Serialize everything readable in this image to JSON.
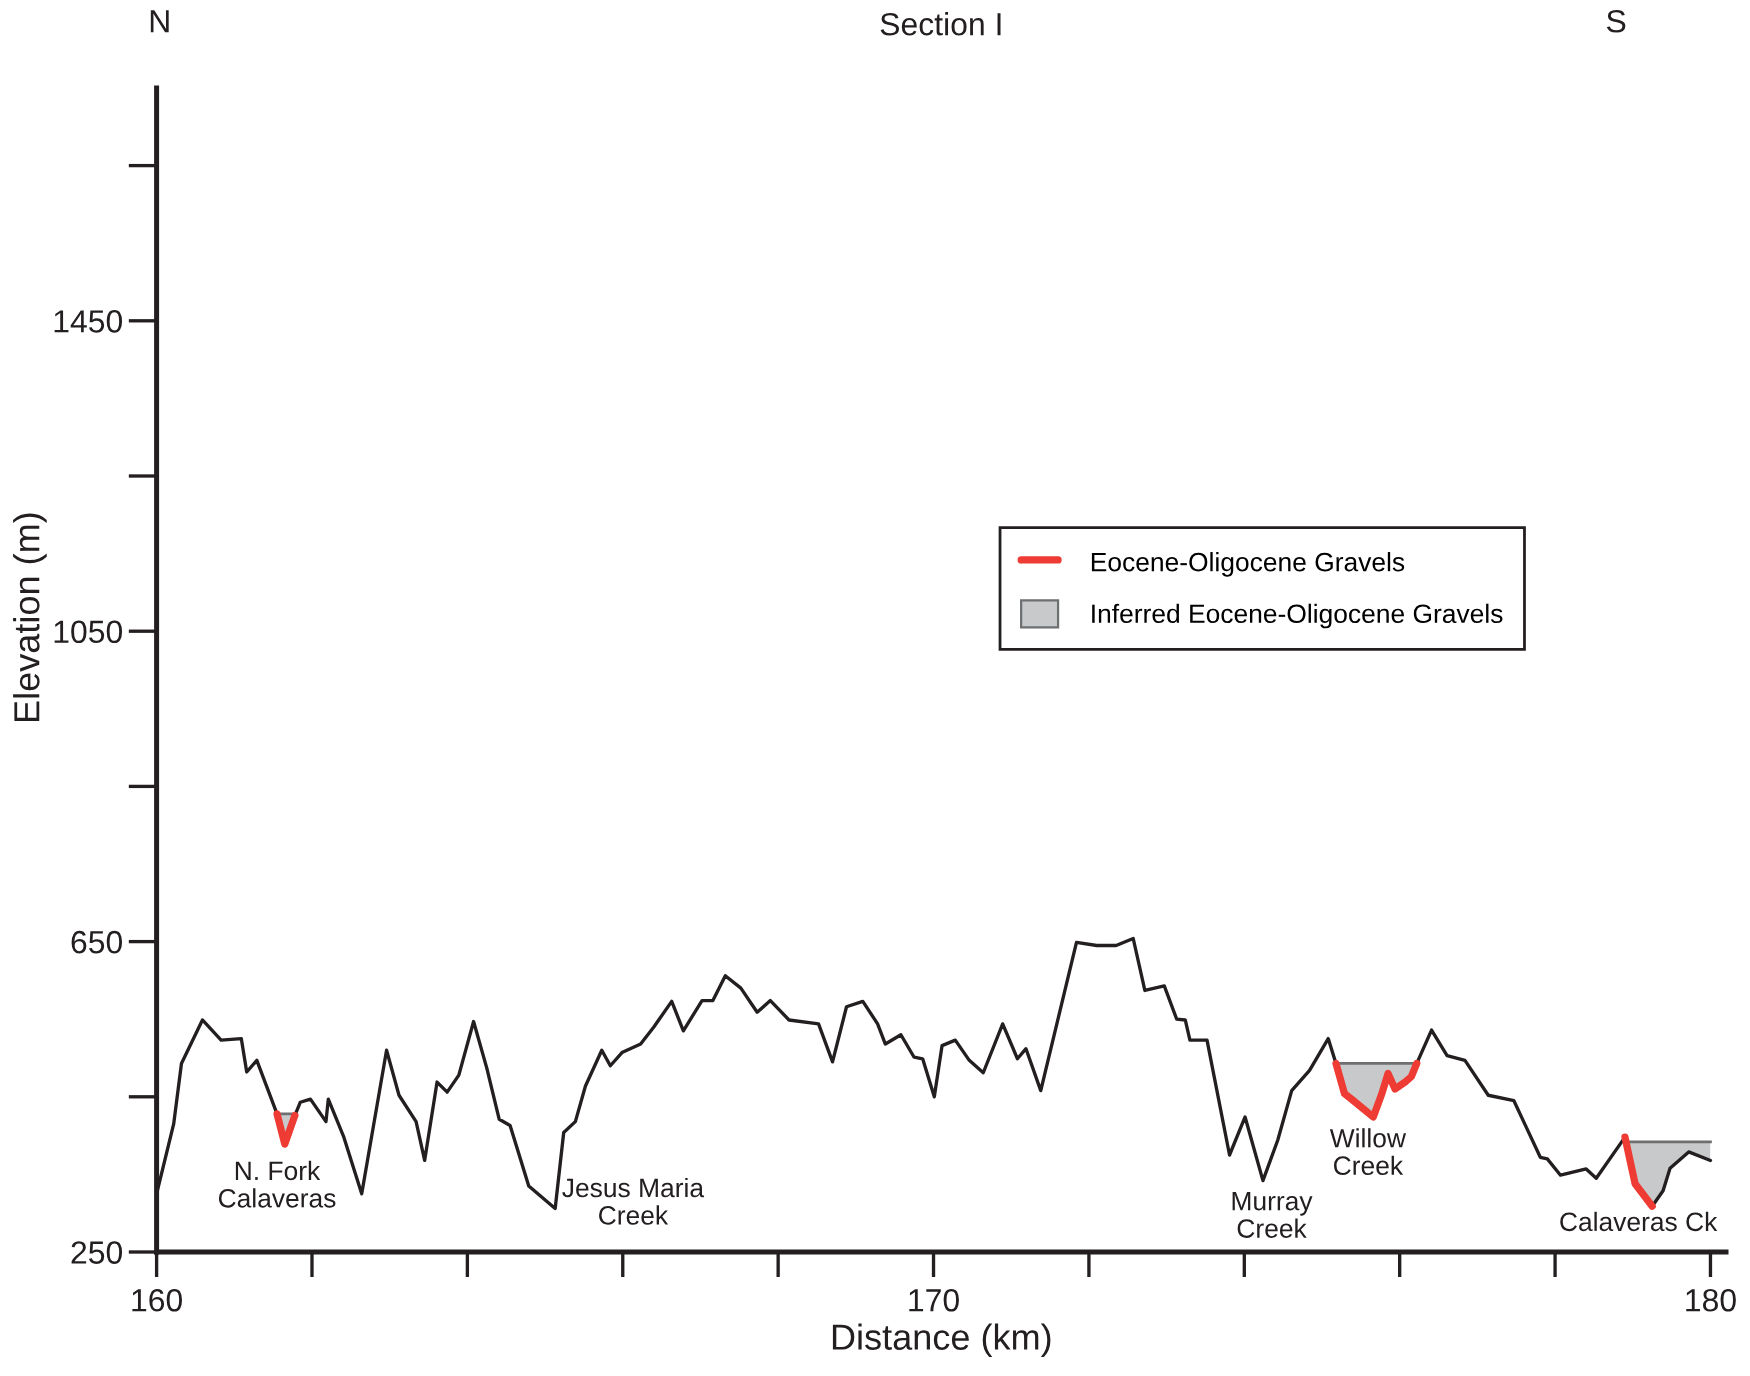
{
  "chart_data": {
    "type": "line",
    "title": "Section I",
    "xlabel": "Distance (km)",
    "ylabel": "Elevation (m)",
    "annotations": [
      "N",
      "S",
      "N. Fork\nCalaveras",
      "Jesus Maria\nCreek",
      "Murray\nCreek",
      "Willow\nCreek",
      "Calaveras Ck"
    ],
    "xlim": [
      160,
      180.2
    ],
    "ylim": [
      250,
      1750
    ],
    "xticks": [
      160,
      {
        "value": 162,
        "label": null
      },
      {
        "value": 164,
        "label": null
      },
      {
        "value": 166,
        "label": null
      },
      {
        "value": 168,
        "label": null
      },
      170,
      {
        "value": 172,
        "label": null
      },
      {
        "value": 174,
        "label": null
      },
      {
        "value": 176,
        "label": null
      },
      {
        "value": 178,
        "label": null
      },
      180
    ],
    "yticks": [
      250,
      {
        "value": 450,
        "label": null
      },
      650,
      {
        "value": 850,
        "label": null
      },
      1050,
      {
        "value": 1250,
        "label": null
      },
      1450,
      {
        "value": 1650,
        "label": null
      }
    ],
    "legend": "right",
    "series": [
      {
        "color": "#231f20",
        "x": [
          160.0,
          160.22,
          160.32,
          160.59,
          160.83,
          161.09,
          161.16,
          161.29,
          161.55,
          161.65,
          161.78,
          161.85,
          161.98,
          162.18,
          162.21,
          162.41,
          162.64,
          162.96,
          163.12,
          163.34,
          163.45,
          163.61,
          163.74,
          163.89,
          164.08,
          164.25,
          164.41,
          164.55,
          164.79,
          165.13,
          165.24,
          165.39,
          165.52,
          165.73,
          165.84,
          165.99,
          166.23,
          166.4,
          166.63,
          166.78,
          167.02,
          167.16,
          167.32,
          167.52,
          167.73,
          167.9,
          168.14,
          168.52,
          168.7,
          168.88,
          169.09,
          169.28,
          169.38,
          169.58,
          169.75,
          169.86,
          170.01,
          170.11,
          170.28,
          170.46,
          170.64,
          170.89,
          171.08,
          171.19,
          171.38,
          171.84,
          172.1,
          172.35,
          172.57,
          172.72,
          172.97,
          173.13,
          173.24,
          173.3,
          173.52,
          173.81,
          174.01,
          174.24,
          174.43,
          174.61,
          174.84,
          175.08,
          175.18,
          175.29,
          175.38,
          175.66,
          175.77,
          175.85,
          175.94,
          176.07,
          176.15,
          176.22,
          176.41,
          176.61,
          176.84,
          177.14,
          177.47,
          177.81,
          177.9,
          178.07,
          178.4,
          178.53,
          178.9,
          179.03,
          179.25,
          179.39,
          179.48,
          179.72,
          180.0
        ],
        "values": [
          325,
          415,
          493,
          549,
          523,
          525,
          482,
          497,
          428,
          null,
          426,
          443,
          447,
          418,
          447,
          398,
          325,
          510,
          452,
          418,
          368,
          469,
          456,
          478,
          547,
          487,
          421,
          413,
          335,
          306,
          404,
          418,
          464,
          510,
          490,
          507,
          518,
          540,
          573,
          535,
          574,
          574,
          606,
          590,
          559,
          574,
          549,
          544,
          495,
          566,
          573,
          544,
          518,
          530,
          501,
          499,
          450,
          516,
          523,
          497,
          481,
          544,
          499,
          512,
          458,
          649,
          645,
          645,
          654,
          587,
          593,
          550,
          549,
          523,
          523,
          375,
          424,
          342,
          394,
          458,
          484,
          525,
          493,
          null,
          null,
          null,
          null,
          null,
          null,
          null,
          null,
          493,
          536,
          503,
          497,
          452,
          445,
          372,
          370,
          349,
          357,
          345,
          398,
          null,
          309,
          329,
          358,
          379,
          368
        ]
      },
      {
        "type": "line",
        "name": "Eocene-Oligocene Gravels",
        "color": "#ee3b33",
        "x": [
          161.55,
          161.65,
          161.78,
          168.5,
          175.18,
          175.29,
          175.38,
          175.66,
          175.77,
          175.85,
          175.94,
          176.07,
          176.15,
          176.22,
          177.5,
          178.9,
          179.03,
          179.25
        ],
        "values": [
          428,
          389,
          426,
          null,
          493,
          454,
          447,
          424,
          454,
          480,
          460,
          469,
          476,
          493,
          null,
          398,
          338,
          309
        ]
      },
      {
        "type": "area",
        "name": "Inferred Eocene-Oligocene Gravels",
        "color": "#c8c9cb",
        "x": [
          161.55,
          161.78,
          168.5,
          175.18,
          176.22,
          177.5,
          178.92,
          180.0
        ],
        "values": [
          428,
          428,
          null,
          493,
          493,
          null,
          392,
          392
        ]
      }
    ]
  }
}
